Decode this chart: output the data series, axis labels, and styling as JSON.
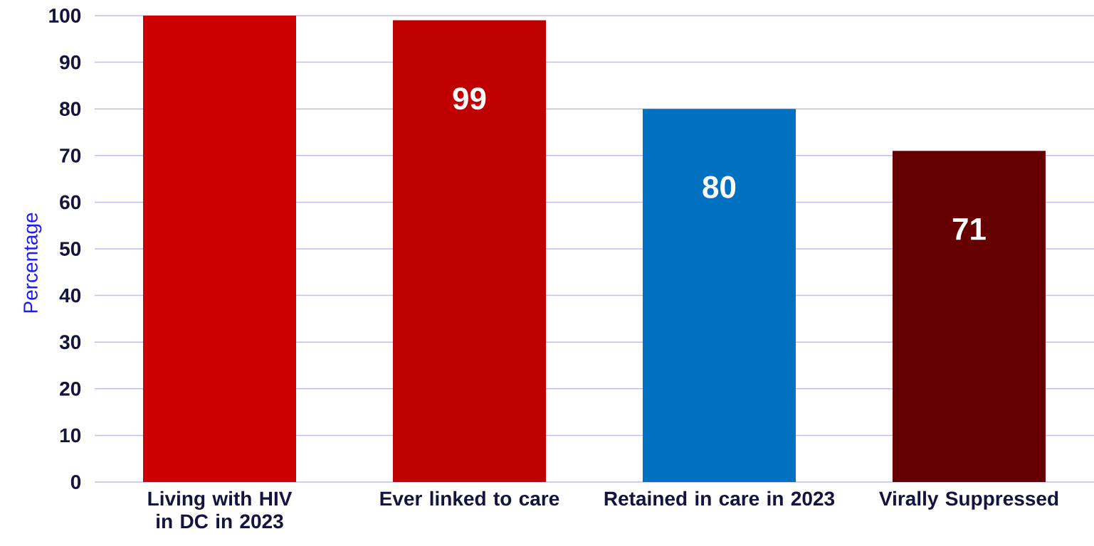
{
  "chart_data": {
    "type": "bar",
    "ylabel": "Percentage",
    "categories": [
      "Living with HIV in DC in 2023",
      "Ever linked to care",
      "Retained in care in 2023",
      "Virally Suppressed"
    ],
    "values": [
      100,
      99,
      80,
      71
    ],
    "colors": [
      "#cc0000",
      "#be0000",
      "#0070c0",
      "#660000"
    ],
    "value_labels": [
      null,
      "99",
      "80",
      "71"
    ],
    "ylim": [
      0,
      100
    ],
    "yticks": [
      0,
      10,
      20,
      30,
      40,
      50,
      60,
      70,
      80,
      90,
      100
    ],
    "grid": "y"
  }
}
